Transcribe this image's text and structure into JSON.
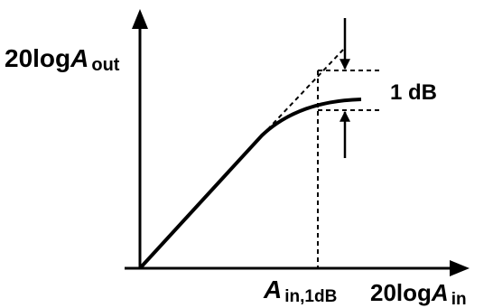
{
  "labels": {
    "y_axis": {
      "prefix": "20log",
      "var": "A",
      "sub": "out"
    },
    "x_axis": {
      "prefix": "20log",
      "var": "A",
      "sub": "in"
    },
    "x_marker": {
      "var": "A",
      "sub": "in,1dB"
    },
    "gap": "1 dB"
  },
  "colors": {
    "ink": "#000000",
    "background": "#ffffff"
  }
}
